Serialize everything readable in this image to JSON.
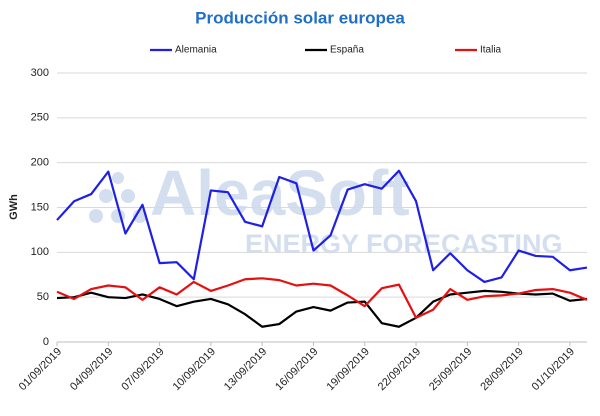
{
  "chart_data": {
    "type": "line",
    "title": "Producción solar europea",
    "y_label": "GWh",
    "watermark": [
      "AleaSoft",
      "ENERGY FORECASTING"
    ],
    "categories": [
      "01/09/2019",
      null,
      null,
      "04/09/2019",
      null,
      null,
      "07/09/2019",
      null,
      null,
      "10/09/2019",
      null,
      null,
      "13/09/2019",
      null,
      null,
      "16/09/2019",
      null,
      null,
      "19/09/2019",
      null,
      null,
      "22/09/2019",
      null,
      null,
      "25/09/2019",
      null,
      null,
      "28/09/2019",
      null,
      null,
      "01/10/2019",
      null
    ],
    "series": [
      {
        "name": "Alemania",
        "color": "#1f1fe6",
        "values": [
          136,
          157,
          165,
          190,
          121,
          153,
          88,
          89,
          70,
          169,
          167,
          134,
          129,
          184,
          177,
          102,
          119,
          170,
          176,
          171,
          191,
          157,
          80,
          99,
          80,
          67,
          72,
          102,
          96,
          95,
          80,
          83
        ]
      },
      {
        "name": "España",
        "color": "#000000",
        "values": [
          49,
          50,
          55,
          50,
          49,
          53,
          48,
          40,
          45,
          48,
          42,
          31,
          17,
          20,
          34,
          39,
          35,
          44,
          45,
          21,
          17,
          27,
          45,
          53,
          55,
          57,
          56,
          54,
          53,
          54,
          46,
          48
        ]
      },
      {
        "name": "Italia",
        "color": "#e61010",
        "values": [
          56,
          48,
          59,
          63,
          61,
          47,
          61,
          53,
          67,
          57,
          63,
          70,
          71,
          69,
          63,
          65,
          63,
          52,
          40,
          60,
          64,
          27,
          36,
          59,
          47,
          51,
          52,
          54,
          58,
          59,
          55,
          47
        ]
      }
    ],
    "ylim": [
      0,
      300
    ],
    "yticks": [
      0,
      50,
      100,
      150,
      200,
      250,
      300
    ],
    "grid": true,
    "legend": "top"
  }
}
